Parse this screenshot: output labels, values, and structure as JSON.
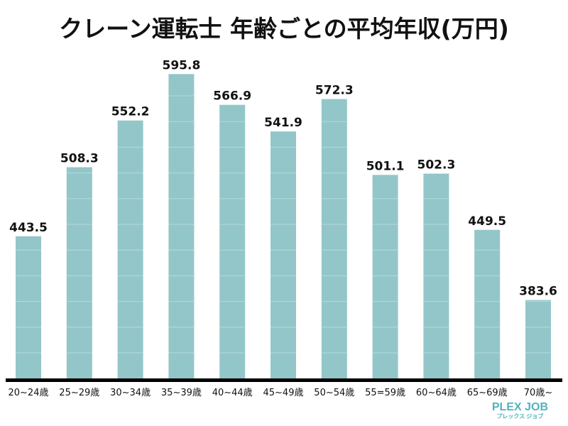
{
  "chart_data": {
    "type": "bar",
    "title": "クレーン運転士 年齢ごとの平均年収(万円)",
    "categories": [
      "20~24歳",
      "25~29歳",
      "30~34歳",
      "35~39歳",
      "40~44歳",
      "45~49歳",
      "50~54歳",
      "55=59歳",
      "60~64歳",
      "65~69歳",
      "70歳~"
    ],
    "values": [
      443.5,
      508.3,
      552.2,
      595.8,
      566.9,
      541.9,
      572.3,
      501.1,
      502.3,
      449.5,
      383.6
    ],
    "data_labels": [
      "443.5",
      "508.3",
      "552.2",
      "595.8",
      "566.9",
      "541.9",
      "572.3",
      "501.1",
      "502.3",
      "449.5",
      "383.6"
    ],
    "ylim": [
      310,
      600
    ],
    "grid": false,
    "colors": {
      "bar": "#93c6c9",
      "axis": "#000000",
      "label": "#111111"
    }
  },
  "logo": {
    "main": "PLEX JOB",
    "sub": "プレックス ジョブ",
    "color": "#4fb3bd"
  }
}
